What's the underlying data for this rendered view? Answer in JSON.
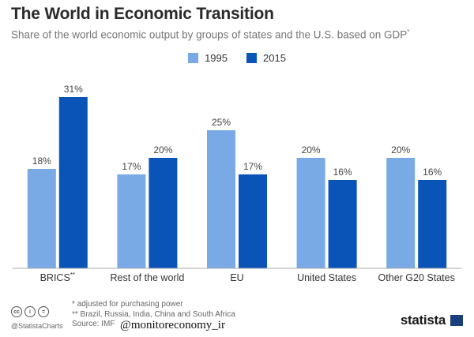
{
  "title": "The World in Economic Transition",
  "subtitle": "Share of the world economic output by groups of states and the U.S. based on GDP",
  "subtitle_mark": "*",
  "colors": {
    "series_1995": "#7aaae6",
    "series_2015": "#0a54b8",
    "axis": "#aaaaaa"
  },
  "chart_data": {
    "type": "bar",
    "title": "The World in Economic Transition",
    "categories": [
      "BRICS**",
      "Rest of the world",
      "EU",
      "United States",
      "Other G20 States"
    ],
    "series": [
      {
        "name": "1995",
        "values": [
          18,
          17,
          25,
          20,
          20
        ]
      },
      {
        "name": "2015",
        "values": [
          31,
          20,
          17,
          16,
          16
        ]
      }
    ],
    "value_suffix": "%",
    "ylim": [
      0,
      35
    ],
    "grid": false,
    "legend": "top-center"
  },
  "footer": {
    "note_1": "*   adjusted for purchasing power",
    "note_2": "** Brazil, Russia, India, China and South Africa",
    "source": "Source: IMF",
    "handle": "@StatistaCharts",
    "watermark": "@monitoreconomy_ir",
    "brand": "statista",
    "cc_icons": [
      "cc-icon",
      "by-icon",
      "nd-icon"
    ]
  }
}
